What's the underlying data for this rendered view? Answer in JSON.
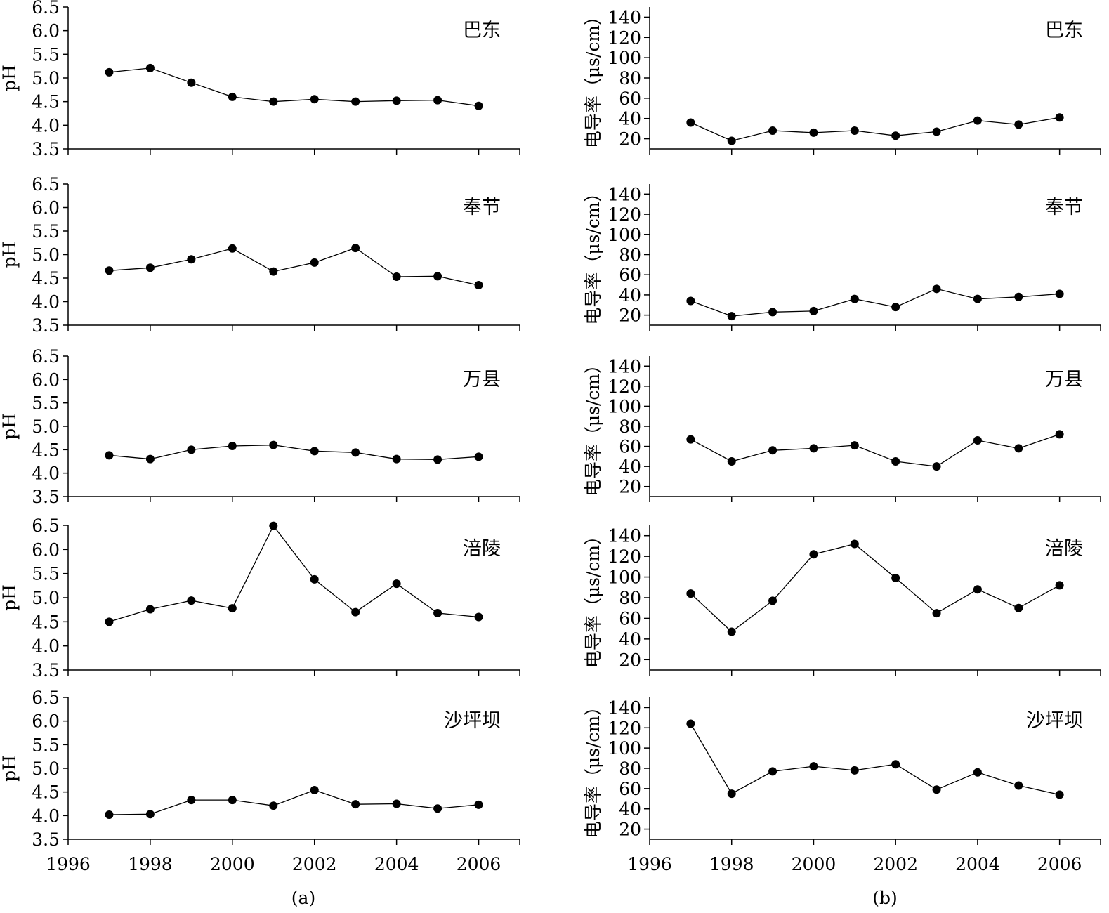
{
  "figure": {
    "captions": [
      "(a)",
      "(b)"
    ]
  },
  "chart_data": [
    {
      "type": "line",
      "group": "a",
      "station": "巴东",
      "ylabel": "pH",
      "x": [
        1997,
        1998,
        1999,
        2000,
        2001,
        2002,
        2003,
        2004,
        2005,
        2006
      ],
      "values": [
        5.12,
        5.21,
        4.9,
        4.6,
        4.5,
        4.55,
        4.5,
        4.52,
        4.53,
        4.41
      ],
      "xlim": [
        1996,
        2007
      ],
      "ylim": [
        3.5,
        6.5
      ],
      "yticks": [
        3.5,
        4.0,
        4.5,
        5.0,
        5.5,
        6.0,
        6.5
      ],
      "ytick_labels": [
        "3.5",
        "4.0",
        "4.5",
        "5.0",
        "5.5",
        "6.0",
        "6.5"
      ],
      "xticks": [
        1996,
        1998,
        2000,
        2002,
        2004,
        2006
      ],
      "xtick_labels": [],
      "show_xtick_labels": false
    },
    {
      "type": "line",
      "group": "b",
      "station": "巴东",
      "ylabel": "电导率（μs/cm）",
      "x": [
        1997,
        1998,
        1999,
        2000,
        2001,
        2002,
        2003,
        2004,
        2005,
        2006
      ],
      "values": [
        36,
        18,
        28,
        26,
        28,
        23,
        27,
        38,
        34,
        41
      ],
      "xlim": [
        1996,
        2007
      ],
      "ylim": [
        10,
        150
      ],
      "yticks": [
        20,
        40,
        60,
        80,
        100,
        120,
        140
      ],
      "ytick_labels": [
        "20",
        "40",
        "60",
        "80",
        "100",
        "120",
        "140"
      ],
      "xticks": [
        1996,
        1998,
        2000,
        2002,
        2004,
        2006
      ],
      "xtick_labels": [],
      "show_xtick_labels": false
    },
    {
      "type": "line",
      "group": "a",
      "station": "奉节",
      "ylabel": "pH",
      "x": [
        1997,
        1998,
        1999,
        2000,
        2001,
        2002,
        2003,
        2004,
        2005,
        2006
      ],
      "values": [
        4.66,
        4.72,
        4.9,
        5.13,
        4.64,
        4.83,
        5.14,
        4.53,
        4.54,
        4.35
      ],
      "xlim": [
        1996,
        2007
      ],
      "ylim": [
        3.5,
        6.5
      ],
      "yticks": [
        3.5,
        4.0,
        4.5,
        5.0,
        5.5,
        6.0,
        6.5
      ],
      "ytick_labels": [
        "3.5",
        "4.0",
        "4.5",
        "5.0",
        "5.5",
        "6.0",
        "6.5"
      ],
      "xticks": [
        1996,
        1998,
        2000,
        2002,
        2004,
        2006
      ],
      "xtick_labels": [],
      "show_xtick_labels": false
    },
    {
      "type": "line",
      "group": "b",
      "station": "奉节",
      "ylabel": "电导率（μs/cm）",
      "x": [
        1997,
        1998,
        1999,
        2000,
        2001,
        2002,
        2003,
        2004,
        2005,
        2006
      ],
      "values": [
        34,
        19,
        23,
        24,
        36,
        28,
        46,
        36,
        38,
        41
      ],
      "xlim": [
        1996,
        2007
      ],
      "ylim": [
        10,
        150
      ],
      "yticks": [
        20,
        40,
        60,
        80,
        100,
        120,
        140
      ],
      "ytick_labels": [
        "20",
        "40",
        "60",
        "80",
        "100",
        "120",
        "140"
      ],
      "xticks": [
        1996,
        1998,
        2000,
        2002,
        2004,
        2006
      ],
      "xtick_labels": [],
      "show_xtick_labels": false
    },
    {
      "type": "line",
      "group": "a",
      "station": "万县",
      "ylabel": "pH",
      "x": [
        1997,
        1998,
        1999,
        2000,
        2001,
        2002,
        2003,
        2004,
        2005,
        2006
      ],
      "values": [
        4.38,
        4.3,
        4.5,
        4.58,
        4.6,
        4.47,
        4.44,
        4.3,
        4.29,
        4.35
      ],
      "xlim": [
        1996,
        2007
      ],
      "ylim": [
        3.5,
        6.5
      ],
      "yticks": [
        3.5,
        4.0,
        4.5,
        5.0,
        5.5,
        6.0,
        6.5
      ],
      "ytick_labels": [
        "3.5",
        "4.0",
        "4.5",
        "5.0",
        "5.5",
        "6.0",
        "6.5"
      ],
      "xticks": [
        1996,
        1998,
        2000,
        2002,
        2004,
        2006
      ],
      "xtick_labels": [],
      "show_xtick_labels": false
    },
    {
      "type": "line",
      "group": "b",
      "station": "万县",
      "ylabel": "电导率（μs/cm）",
      "x": [
        1997,
        1998,
        1999,
        2000,
        2001,
        2002,
        2003,
        2004,
        2005,
        2006
      ],
      "values": [
        67,
        45,
        56,
        58,
        61,
        45,
        40,
        66,
        58,
        72
      ],
      "xlim": [
        1996,
        2007
      ],
      "ylim": [
        10,
        150
      ],
      "yticks": [
        20,
        40,
        60,
        80,
        100,
        120,
        140
      ],
      "ytick_labels": [
        "20",
        "40",
        "60",
        "80",
        "100",
        "120",
        "140"
      ],
      "xticks": [
        1996,
        1998,
        2000,
        2002,
        2004,
        2006
      ],
      "xtick_labels": [],
      "show_xtick_labels": false
    },
    {
      "type": "line",
      "group": "a",
      "station": "涪陵",
      "ylabel": "pH",
      "x": [
        1997,
        1998,
        1999,
        2000,
        2001,
        2002,
        2003,
        2004,
        2005,
        2006
      ],
      "values": [
        4.5,
        4.76,
        4.94,
        4.78,
        6.49,
        5.38,
        4.7,
        5.29,
        4.68,
        4.6
      ],
      "xlim": [
        1996,
        2007
      ],
      "ylim": [
        3.5,
        6.5
      ],
      "yticks": [
        3.5,
        4.0,
        4.5,
        5.0,
        5.5,
        6.0,
        6.5
      ],
      "ytick_labels": [
        "3.5",
        "4.0",
        "4.5",
        "5.0",
        "5.5",
        "6.0",
        "6.5"
      ],
      "xticks": [
        1996,
        1998,
        2000,
        2002,
        2004,
        2006
      ],
      "xtick_labels": [],
      "show_xtick_labels": false
    },
    {
      "type": "line",
      "group": "b",
      "station": "涪陵",
      "ylabel": "电导率（μs/cm）",
      "x": [
        1997,
        1998,
        1999,
        2000,
        2001,
        2002,
        2003,
        2004,
        2005,
        2006
      ],
      "values": [
        84,
        47,
        77,
        122,
        132,
        99,
        65,
        88,
        70,
        92
      ],
      "xlim": [
        1996,
        2007
      ],
      "ylim": [
        10,
        150
      ],
      "yticks": [
        20,
        40,
        60,
        80,
        100,
        120,
        140
      ],
      "ytick_labels": [
        "20",
        "40",
        "60",
        "80",
        "100",
        "120",
        "140"
      ],
      "xticks": [
        1996,
        1998,
        2000,
        2002,
        2004,
        2006
      ],
      "xtick_labels": [],
      "show_xtick_labels": false
    },
    {
      "type": "line",
      "group": "a",
      "station": "沙坪坝",
      "ylabel": "pH",
      "x": [
        1997,
        1998,
        1999,
        2000,
        2001,
        2002,
        2003,
        2004,
        2005,
        2006
      ],
      "values": [
        4.02,
        4.03,
        4.33,
        4.33,
        4.21,
        4.54,
        4.24,
        4.25,
        4.15,
        4.23
      ],
      "xlim": [
        1996,
        2007
      ],
      "ylim": [
        3.5,
        6.5
      ],
      "yticks": [
        3.5,
        4.0,
        4.5,
        5.0,
        5.5,
        6.0,
        6.5
      ],
      "ytick_labels": [
        "3.5",
        "4.0",
        "4.5",
        "5.0",
        "5.5",
        "6.0",
        "6.5"
      ],
      "xticks": [
        1996,
        1998,
        2000,
        2002,
        2004,
        2006
      ],
      "xtick_labels": [
        "1996",
        "1998",
        "2000",
        "2002",
        "2004",
        "2006"
      ],
      "show_xtick_labels": true
    },
    {
      "type": "line",
      "group": "b",
      "station": "沙坪坝",
      "ylabel": "电导率（μs/cm）",
      "x": [
        1997,
        1998,
        1999,
        2000,
        2001,
        2002,
        2003,
        2004,
        2005,
        2006
      ],
      "values": [
        124,
        55,
        77,
        82,
        78,
        84,
        59,
        76,
        63,
        54
      ],
      "xlim": [
        1996,
        2007
      ],
      "ylim": [
        10,
        150
      ],
      "yticks": [
        20,
        40,
        60,
        80,
        100,
        120,
        140
      ],
      "ytick_labels": [
        "20",
        "40",
        "60",
        "80",
        "100",
        "120",
        "140"
      ],
      "xticks": [
        1996,
        1998,
        2000,
        2002,
        2004,
        2006
      ],
      "xtick_labels": [
        "1996",
        "1998",
        "2000",
        "2002",
        "2004",
        "2006"
      ],
      "show_xtick_labels": true
    }
  ]
}
